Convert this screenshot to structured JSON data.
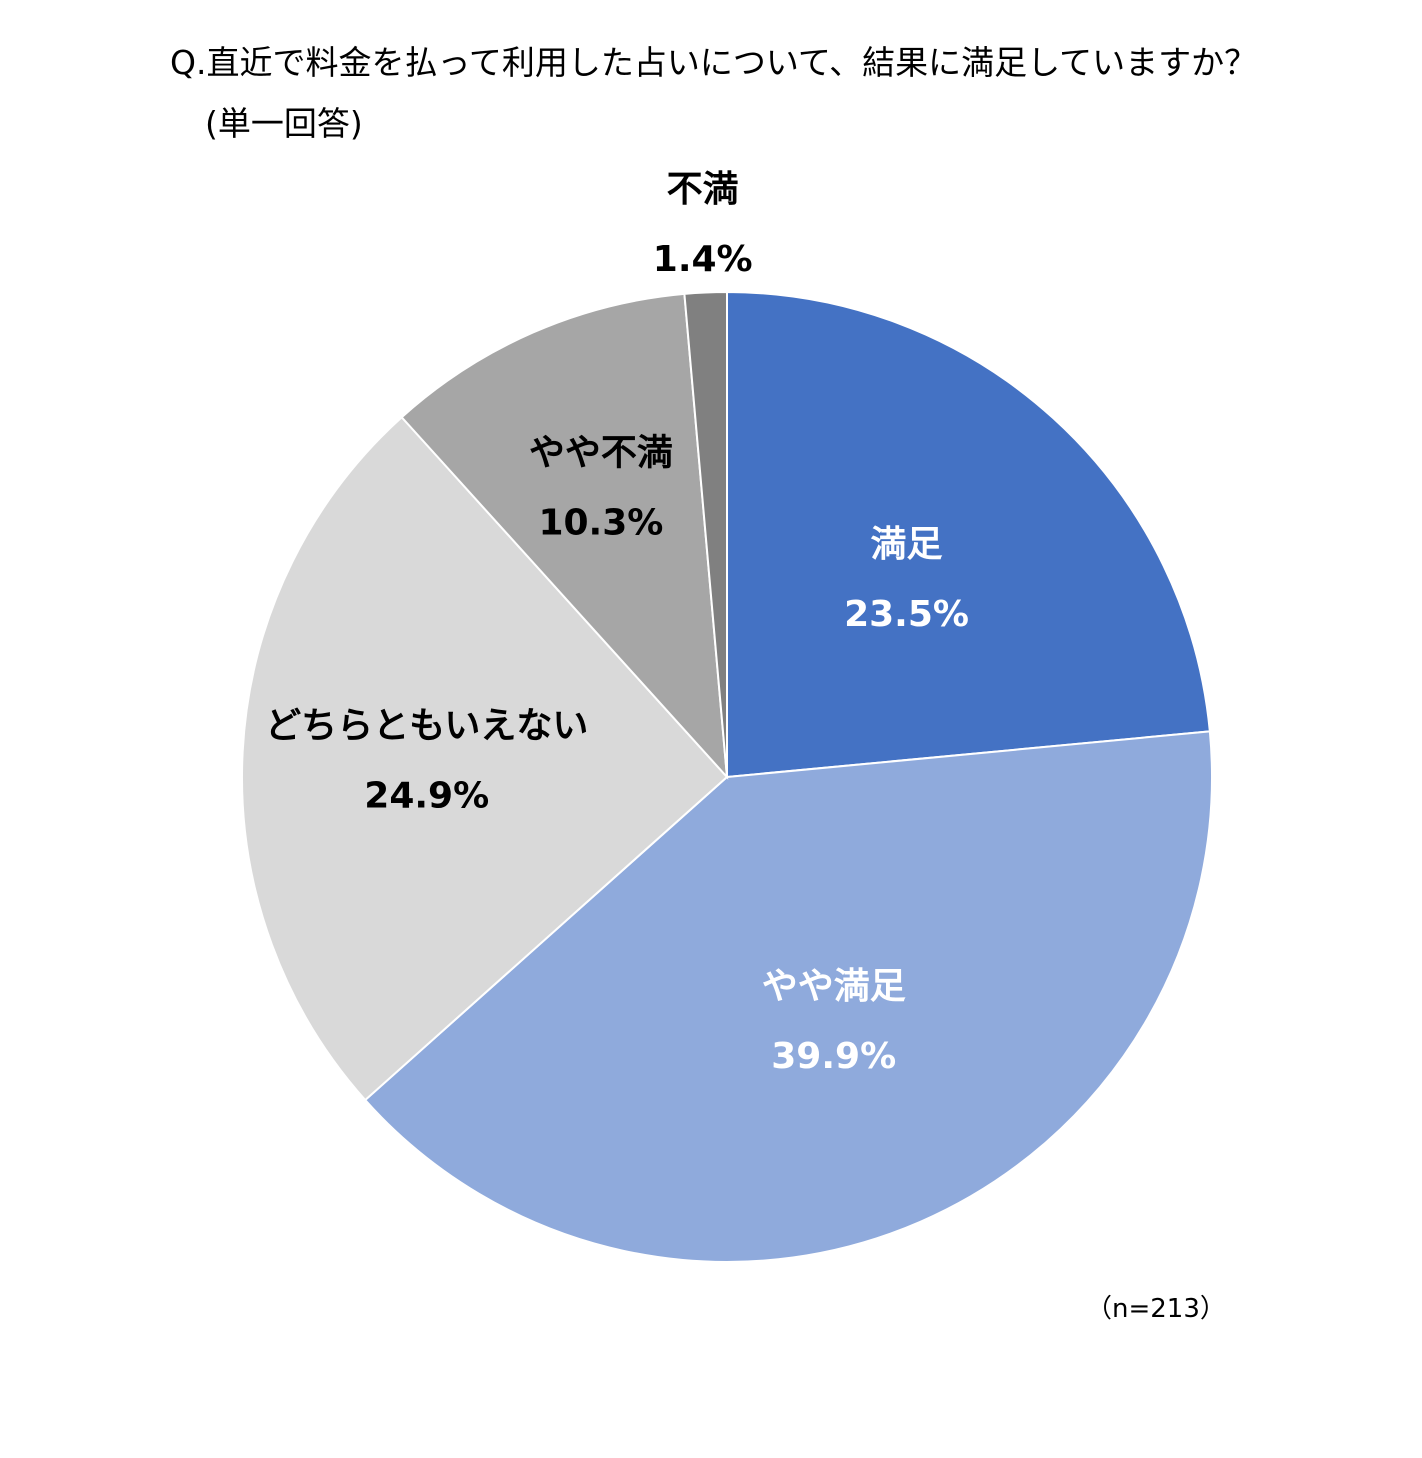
{
  "header": {
    "title_line1": "Q.直近で料金を払って利用した占いについて、結果に満足していますか？",
    "title_line2": "(単一回答)"
  },
  "footer": {
    "sample_note": "（n=213）"
  },
  "chart_data": {
    "type": "pie",
    "title": "Q.直近で料金を払って利用した占いについて、結果に満足していますか？ (単一回答)",
    "start": "12 o'clock",
    "direction": "clockwise",
    "legend": "none",
    "slices": [
      {
        "name": "満足",
        "value": 23.5,
        "label": "23.5%",
        "color": "#4472C4",
        "text_color": "#FFFFFF"
      },
      {
        "name": "やや満足",
        "value": 39.9,
        "label": "39.9%",
        "color": "#8FAADC",
        "text_color": "#FFFFFF"
      },
      {
        "name": "どちらともいえない",
        "value": 24.9,
        "label": "24.9%",
        "color": "#D9D9D9",
        "text_color": "#000000"
      },
      {
        "name": "やや不満",
        "value": 10.3,
        "label": "10.3%",
        "color": "#A6A6A6",
        "text_color": "#000000"
      },
      {
        "name": "不満",
        "value": 1.4,
        "label": "1.4%",
        "color": "#808080",
        "text_color": "#000000"
      }
    ]
  }
}
